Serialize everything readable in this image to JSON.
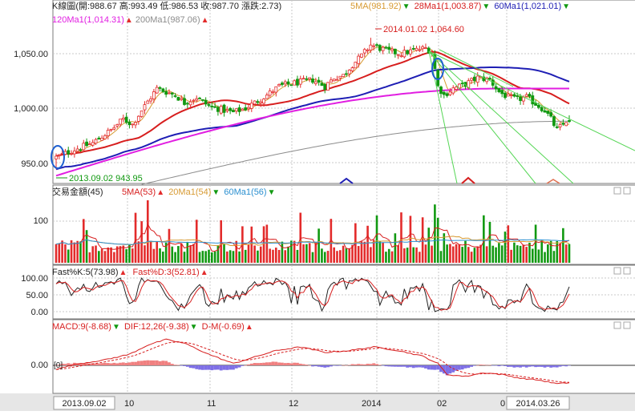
{
  "colors": {
    "up": "#e32b2b",
    "down": "#119911",
    "ma5": "#d79a32",
    "ma28": "#d71e1e",
    "ma60": "#1e1eb4",
    "ma120": "#e11ee1",
    "ma200": "#8c8c8c",
    "trend": "#55d655",
    "grid": "#c8c8c8",
    "frame": "#7a7a7a",
    "macd_pos": "#f08080",
    "macd_neg": "#7e6fe6"
  },
  "price_panel": {
    "title": "K線圖(開:988.67 高:993.49 低:986.53 收:987.70 漲跌:2.73)",
    "legend_row1": [
      {
        "text": "5MA(981.92)",
        "arrow": "▼",
        "color": "#d79a32",
        "arrow_color": "#119911"
      },
      {
        "text": "28Ma1(1,003.87)",
        "arrow": "▼",
        "color": "#d71e1e",
        "arrow_color": "#119911"
      },
      {
        "text": "60Ma1(1,021.01)",
        "arrow": "▼",
        "color": "#1e1eb4",
        "arrow_color": "#119911"
      }
    ],
    "legend_row2": [
      {
        "text": "120Ma1(1,014.31)",
        "arrow": "▲",
        "color": "#e11ee1",
        "arrow_color": "#e32b2b"
      },
      {
        "text": "200Ma1(987.06)",
        "arrow": "▲",
        "color": "#8c8c8c",
        "arrow_color": "#e32b2b"
      }
    ],
    "y_ticks": [
      "1,050.00",
      "1,000.00",
      "950.00"
    ],
    "high_annotation": "2014.01.02   1,064.60",
    "low_annotation": "2013.09.02   943.95"
  },
  "volume_panel": {
    "title": "交易金額(45)",
    "legend": [
      {
        "text": "5MA(53)",
        "arrow": "▲",
        "color": "#d71e1e",
        "arrow_color": "#e32b2b"
      },
      {
        "text": "20Ma1(54)",
        "arrow": "▼",
        "color": "#d79a32",
        "arrow_color": "#119911"
      },
      {
        "text": "60Ma1(56)",
        "arrow": "▼",
        "color": "#2a8fd0",
        "arrow_color": "#119911"
      }
    ],
    "y_ticks": [
      "100"
    ]
  },
  "kd_panel": {
    "legend": [
      {
        "text": "Fast%K:5(73.98)",
        "arrow": "▲",
        "color": "#222222",
        "arrow_color": "#e32b2b"
      },
      {
        "text": "Fast%D:3(52.81)",
        "arrow": "▲",
        "color": "#d71e1e",
        "arrow_color": "#e32b2b"
      }
    ],
    "y_ticks": [
      "100.00",
      "50.00",
      "0.00"
    ]
  },
  "macd_panel": {
    "legend": [
      {
        "text": "MACD:9(-8.68)",
        "arrow": "▼",
        "color": "#d71e1e",
        "arrow_color": "#119911"
      },
      {
        "text": "DIF:12,26(-9.38)",
        "arrow": "▼",
        "color": "#d71e1e",
        "arrow_color": "#119911"
      },
      {
        "text": "D-M(-0.69)",
        "arrow": "▲",
        "color": "#d71e1e",
        "arrow_color": "#e32b2b"
      }
    ],
    "y_ticks": [
      "0.00"
    ],
    "zero_label": "[0]"
  },
  "x_axis": {
    "labels": [
      "2013.09.02",
      "10",
      "11",
      "12",
      "2014",
      "02",
      "0",
      "2014.03.26"
    ]
  },
  "chart_data": [
    {
      "type": "candlestick",
      "title": "K線圖(開:988.67 高:993.49 低:986.53 收:987.70 漲跌:2.73)",
      "x_range": [
        "2013.09.02",
        "2014.03.26"
      ],
      "ylim": [
        935,
        1075
      ],
      "last_bar": {
        "open": 988.67,
        "high": 993.49,
        "low": 986.53,
        "close": 987.7,
        "change": 2.73
      },
      "anchors_close": [
        [
          0,
          955
        ],
        [
          6,
          962
        ],
        [
          12,
          968
        ],
        [
          18,
          980
        ],
        [
          22,
          990
        ],
        [
          25,
          985
        ],
        [
          28,
          998
        ],
        [
          31,
          1010
        ],
        [
          33,
          1018
        ],
        [
          36,
          1015
        ],
        [
          39,
          1012
        ],
        [
          42,
          1005
        ],
        [
          46,
          1010
        ],
        [
          50,
          1002
        ],
        [
          55,
          998
        ],
        [
          58,
          996
        ],
        [
          62,
          1000
        ],
        [
          65,
          1005
        ],
        [
          69,
          1012
        ],
        [
          73,
          1020
        ],
        [
          76,
          1022
        ],
        [
          80,
          1024
        ],
        [
          84,
          1026
        ],
        [
          88,
          1020
        ],
        [
          91,
          1028
        ],
        [
          94,
          1030
        ],
        [
          97,
          1040
        ],
        [
          100,
          1048
        ],
        [
          103,
          1058
        ],
        [
          106,
          1055
        ],
        [
          109,
          1052
        ],
        [
          113,
          1050
        ],
        [
          117,
          1053
        ],
        [
          121,
          1055
        ],
        [
          123,
          1052
        ],
        [
          125,
          1020
        ],
        [
          127,
          1012
        ],
        [
          130,
          1018
        ],
        [
          134,
          1022
        ],
        [
          138,
          1028
        ],
        [
          142,
          1026
        ],
        [
          145,
          1015
        ],
        [
          148,
          1010
        ],
        [
          151,
          1008
        ],
        [
          154,
          1010
        ],
        [
          157,
          1004
        ],
        [
          160,
          998
        ],
        [
          162,
          990
        ],
        [
          164,
          980
        ],
        [
          166,
          985
        ],
        [
          168,
          992
        ]
      ],
      "moving_averages": [
        {
          "name": "5MA",
          "value": 981.92
        },
        {
          "name": "28Ma1",
          "value": 1003.87
        },
        {
          "name": "60Ma1",
          "value": 1021.01
        },
        {
          "name": "120Ma1",
          "value": 1014.31
        },
        {
          "name": "200Ma1",
          "value": 987.06
        }
      ],
      "annotations": [
        {
          "date": "2014.01.02",
          "value": 1064.6
        },
        {
          "date": "2013.09.02",
          "value": 943.95
        }
      ]
    },
    {
      "type": "bar",
      "title": "交易金額(45)",
      "ylim": [
        0,
        160
      ],
      "series": [
        {
          "name": "5MA",
          "value": 53
        },
        {
          "name": "20Ma1",
          "value": 54
        },
        {
          "name": "60Ma1",
          "value": 56
        }
      ],
      "last_value": 45
    },
    {
      "type": "line",
      "ylim": [
        0,
        100
      ],
      "series": [
        {
          "name": "Fast%K:5",
          "last": 73.98
        },
        {
          "name": "Fast%D:3",
          "last": 52.81
        }
      ]
    },
    {
      "type": "bar",
      "ylim": [
        -15,
        15
      ],
      "series": [
        {
          "name": "MACD:9",
          "last": -8.68
        },
        {
          "name": "DIF:12,26",
          "last": -9.38
        },
        {
          "name": "D-M",
          "last": -0.69
        }
      ],
      "dif_anchors": [
        [
          0,
          -2
        ],
        [
          8,
          1
        ],
        [
          16,
          3
        ],
        [
          24,
          6
        ],
        [
          30,
          11
        ],
        [
          36,
          14
        ],
        [
          42,
          12
        ],
        [
          50,
          6
        ],
        [
          58,
          1
        ],
        [
          64,
          4
        ],
        [
          72,
          8
        ],
        [
          80,
          10
        ],
        [
          88,
          7
        ],
        [
          96,
          8
        ],
        [
          104,
          10
        ],
        [
          112,
          8
        ],
        [
          120,
          5
        ],
        [
          125,
          1
        ],
        [
          128,
          -5
        ],
        [
          134,
          -6
        ],
        [
          140,
          -4
        ],
        [
          146,
          -5
        ],
        [
          152,
          -7
        ],
        [
          158,
          -8
        ],
        [
          164,
          -10
        ],
        [
          168,
          -9.38
        ]
      ]
    }
  ]
}
